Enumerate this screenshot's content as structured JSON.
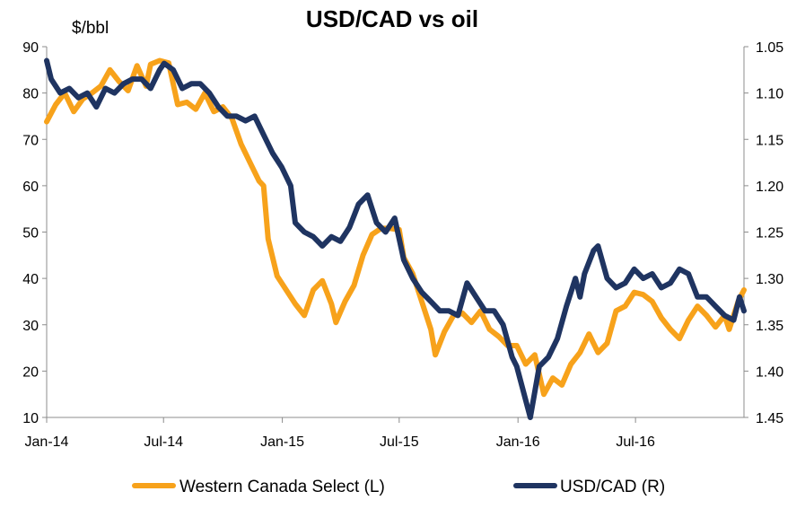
{
  "chart_data": {
    "type": "line",
    "title": "USD/CAD vs oil",
    "left_axis_unit": "$/bbl",
    "x_ticks": [
      "Jan-14",
      "Jul-14",
      "Jan-15",
      "Jul-15",
      "Jan-16",
      "Jul-16"
    ],
    "x_tick_dates": [
      "2014-01-01",
      "2014-07-01",
      "2015-01-01",
      "2015-07-01",
      "2016-01-01",
      "2016-07-01"
    ],
    "x_range": [
      "2014-01-01",
      "2016-12-16"
    ],
    "left_axis": {
      "min": 10,
      "max": 90,
      "ticks": [
        "10",
        "20",
        "30",
        "40",
        "50",
        "60",
        "70",
        "80",
        "90"
      ]
    },
    "right_axis": {
      "min": 1.05,
      "max": 1.45,
      "inverted": true,
      "ticks": [
        "1.05",
        "1.10",
        "1.15",
        "1.20",
        "1.25",
        "1.30",
        "1.35",
        "1.40",
        "1.45"
      ]
    },
    "grid": false,
    "legend_position": "bottom",
    "series": [
      {
        "name": "Western Canada Select (L)",
        "axis": "left",
        "color": "#f7a21b",
        "points": [
          [
            "2014-01-01",
            73.8
          ],
          [
            "2014-01-15",
            77.5
          ],
          [
            "2014-01-29",
            80.0
          ],
          [
            "2014-02-12",
            76.0
          ],
          [
            "2014-02-26",
            78.7
          ],
          [
            "2014-03-12",
            80.0
          ],
          [
            "2014-03-26",
            81.5
          ],
          [
            "2014-04-09",
            85.0
          ],
          [
            "2014-04-23",
            82.5
          ],
          [
            "2014-05-07",
            80.5
          ],
          [
            "2014-05-21",
            85.9
          ],
          [
            "2014-06-04",
            81.5
          ],
          [
            "2014-06-11",
            86.2
          ],
          [
            "2014-06-25",
            87.0
          ],
          [
            "2014-07-09",
            86.5
          ],
          [
            "2014-07-23",
            77.5
          ],
          [
            "2014-08-06",
            78.0
          ],
          [
            "2014-08-20",
            76.5
          ],
          [
            "2014-09-03",
            80.0
          ],
          [
            "2014-09-17",
            76.0
          ],
          [
            "2014-10-01",
            77.0
          ],
          [
            "2014-10-15",
            74.5
          ],
          [
            "2014-10-29",
            69.0
          ],
          [
            "2014-11-12",
            65.0
          ],
          [
            "2014-11-26",
            61.0
          ],
          [
            "2014-12-03",
            60.0
          ],
          [
            "2014-12-10",
            48.5
          ],
          [
            "2014-12-24",
            40.5
          ],
          [
            "2015-01-07",
            37.5
          ],
          [
            "2015-01-21",
            34.5
          ],
          [
            "2015-02-04",
            32.0
          ],
          [
            "2015-02-18",
            37.5
          ],
          [
            "2015-03-04",
            39.5
          ],
          [
            "2015-03-18",
            34.5
          ],
          [
            "2015-03-25",
            30.5
          ],
          [
            "2015-04-08",
            35.0
          ],
          [
            "2015-04-22",
            38.5
          ],
          [
            "2015-05-06",
            45.0
          ],
          [
            "2015-05-20",
            49.5
          ],
          [
            "2015-06-03",
            50.8
          ],
          [
            "2015-06-17",
            50.8
          ],
          [
            "2015-07-01",
            50.5
          ],
          [
            "2015-07-08",
            44.5
          ],
          [
            "2015-07-22",
            41.0
          ],
          [
            "2015-08-05",
            35.0
          ],
          [
            "2015-08-19",
            29.0
          ],
          [
            "2015-08-26",
            23.5
          ],
          [
            "2015-09-09",
            28.5
          ],
          [
            "2015-09-23",
            32.0
          ],
          [
            "2015-10-07",
            32.5
          ],
          [
            "2015-10-21",
            30.5
          ],
          [
            "2015-11-04",
            33.0
          ],
          [
            "2015-11-18",
            29.0
          ],
          [
            "2015-12-02",
            27.5
          ],
          [
            "2015-12-16",
            25.5
          ],
          [
            "2015-12-30",
            25.5
          ],
          [
            "2016-01-13",
            21.5
          ],
          [
            "2016-01-27",
            23.5
          ],
          [
            "2016-02-10",
            15.0
          ],
          [
            "2016-02-24",
            18.5
          ],
          [
            "2016-03-09",
            17.0
          ],
          [
            "2016-03-23",
            21.5
          ],
          [
            "2016-04-06",
            24.0
          ],
          [
            "2016-04-20",
            28.0
          ],
          [
            "2016-05-04",
            24.0
          ],
          [
            "2016-05-18",
            26.0
          ],
          [
            "2016-06-01",
            33.0
          ],
          [
            "2016-06-15",
            34.0
          ],
          [
            "2016-06-29",
            37.0
          ],
          [
            "2016-07-13",
            36.5
          ],
          [
            "2016-07-27",
            35.0
          ],
          [
            "2016-08-10",
            31.5
          ],
          [
            "2016-08-24",
            29.0
          ],
          [
            "2016-09-07",
            27.0
          ],
          [
            "2016-09-21",
            31.0
          ],
          [
            "2016-10-05",
            34.0
          ],
          [
            "2016-10-19",
            32.0
          ],
          [
            "2016-11-02",
            29.5
          ],
          [
            "2016-11-16",
            32.0
          ],
          [
            "2016-11-23",
            29.0
          ],
          [
            "2016-12-07",
            35.0
          ],
          [
            "2016-12-16",
            37.5
          ]
        ]
      },
      {
        "name": "USD/CAD (R)",
        "axis": "right",
        "color": "#1f3461",
        "points": [
          [
            "2014-01-01",
            1.065
          ],
          [
            "2014-01-08",
            1.085
          ],
          [
            "2014-01-22",
            1.1
          ],
          [
            "2014-02-05",
            1.095
          ],
          [
            "2014-02-19",
            1.105
          ],
          [
            "2014-03-05",
            1.1
          ],
          [
            "2014-03-19",
            1.115
          ],
          [
            "2014-04-02",
            1.095
          ],
          [
            "2014-04-16",
            1.1
          ],
          [
            "2014-04-30",
            1.09
          ],
          [
            "2014-05-14",
            1.085
          ],
          [
            "2014-05-28",
            1.085
          ],
          [
            "2014-06-11",
            1.095
          ],
          [
            "2014-06-25",
            1.075
          ],
          [
            "2014-07-02",
            1.068
          ],
          [
            "2014-07-16",
            1.075
          ],
          [
            "2014-07-30",
            1.095
          ],
          [
            "2014-08-13",
            1.09
          ],
          [
            "2014-08-27",
            1.09
          ],
          [
            "2014-09-10",
            1.1
          ],
          [
            "2014-09-24",
            1.115
          ],
          [
            "2014-10-08",
            1.125
          ],
          [
            "2014-10-22",
            1.125
          ],
          [
            "2014-11-05",
            1.13
          ],
          [
            "2014-11-19",
            1.125
          ],
          [
            "2014-12-03",
            1.145
          ],
          [
            "2014-12-17",
            1.165
          ],
          [
            "2014-12-31",
            1.18
          ],
          [
            "2015-01-14",
            1.2
          ],
          [
            "2015-01-21",
            1.24
          ],
          [
            "2015-02-04",
            1.25
          ],
          [
            "2015-02-18",
            1.255
          ],
          [
            "2015-03-04",
            1.265
          ],
          [
            "2015-03-18",
            1.255
          ],
          [
            "2015-04-01",
            1.26
          ],
          [
            "2015-04-15",
            1.245
          ],
          [
            "2015-04-29",
            1.22
          ],
          [
            "2015-05-13",
            1.21
          ],
          [
            "2015-05-27",
            1.24
          ],
          [
            "2015-06-10",
            1.25
          ],
          [
            "2015-06-24",
            1.235
          ],
          [
            "2015-07-08",
            1.28
          ],
          [
            "2015-07-22",
            1.3
          ],
          [
            "2015-08-05",
            1.315
          ],
          [
            "2015-08-19",
            1.325
          ],
          [
            "2015-09-02",
            1.335
          ],
          [
            "2015-09-16",
            1.335
          ],
          [
            "2015-09-30",
            1.34
          ],
          [
            "2015-10-14",
            1.305
          ],
          [
            "2015-10-28",
            1.32
          ],
          [
            "2015-11-11",
            1.335
          ],
          [
            "2015-11-25",
            1.335
          ],
          [
            "2015-12-09",
            1.35
          ],
          [
            "2015-12-23",
            1.385
          ],
          [
            "2015-12-30",
            1.395
          ],
          [
            "2016-01-20",
            1.45
          ],
          [
            "2016-02-03",
            1.395
          ],
          [
            "2016-02-17",
            1.385
          ],
          [
            "2016-03-02",
            1.365
          ],
          [
            "2016-03-16",
            1.33
          ],
          [
            "2016-03-30",
            1.3
          ],
          [
            "2016-04-06",
            1.32
          ],
          [
            "2016-04-13",
            1.295
          ],
          [
            "2016-04-27",
            1.27
          ],
          [
            "2016-05-04",
            1.265
          ],
          [
            "2016-05-18",
            1.3
          ],
          [
            "2016-06-01",
            1.31
          ],
          [
            "2016-06-15",
            1.305
          ],
          [
            "2016-06-29",
            1.29
          ],
          [
            "2016-07-13",
            1.3
          ],
          [
            "2016-07-27",
            1.295
          ],
          [
            "2016-08-10",
            1.31
          ],
          [
            "2016-08-24",
            1.305
          ],
          [
            "2016-09-07",
            1.29
          ],
          [
            "2016-09-21",
            1.295
          ],
          [
            "2016-10-05",
            1.32
          ],
          [
            "2016-10-19",
            1.32
          ],
          [
            "2016-11-02",
            1.33
          ],
          [
            "2016-11-16",
            1.34
          ],
          [
            "2016-11-30",
            1.345
          ],
          [
            "2016-12-09",
            1.32
          ],
          [
            "2016-12-16",
            1.335
          ]
        ]
      }
    ]
  }
}
